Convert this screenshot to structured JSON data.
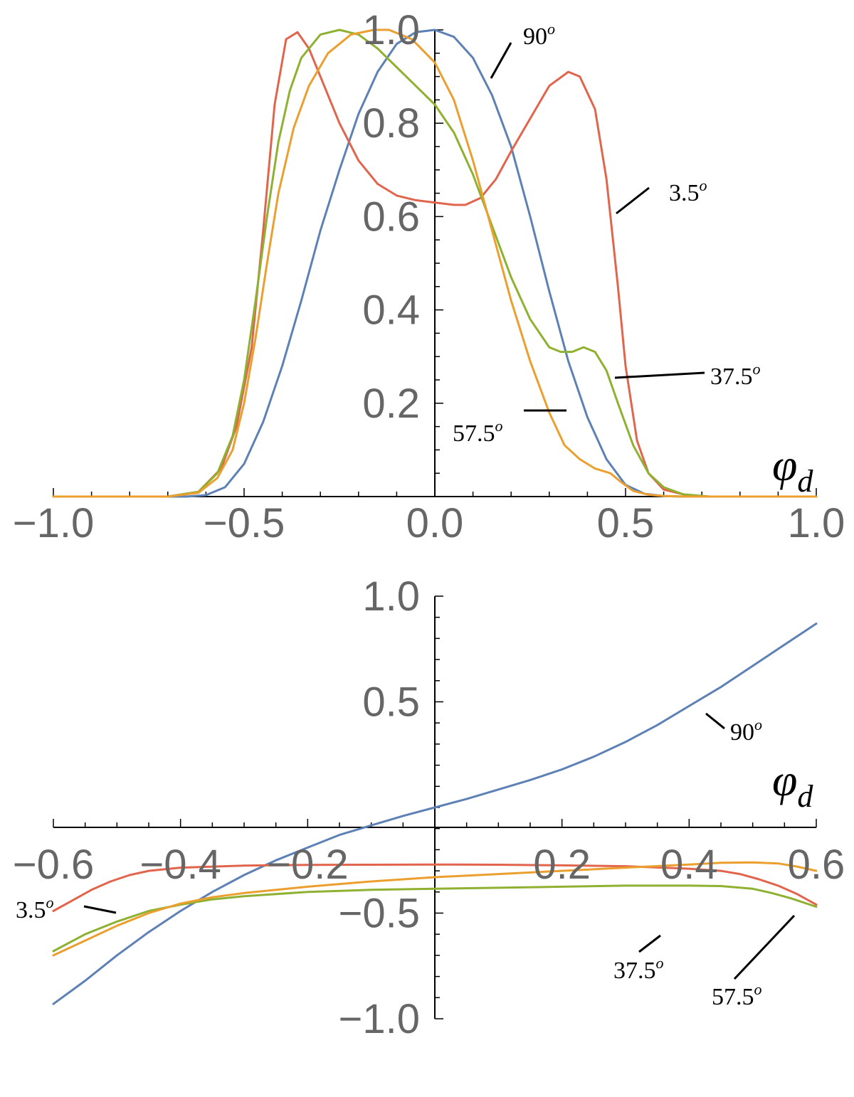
{
  "chart_data": [
    {
      "type": "line",
      "title": "",
      "xlabel": "φ_d",
      "xlabel_main": "φ",
      "xlabel_sub": "d",
      "ylabel": "",
      "xlim": [
        -1.0,
        1.0
      ],
      "ylim": [
        0,
        1.0
      ],
      "x_ticks": [
        -1.0,
        -0.5,
        0.0,
        0.5,
        1.0
      ],
      "x_tick_labels": [
        "−1.0",
        "−0.5",
        "0.0",
        "0.5",
        "1.0"
      ],
      "y_ticks": [
        0.2,
        0.4,
        0.6,
        0.8,
        1.0
      ],
      "y_tick_labels": [
        "0.2",
        "0.4",
        "0.6",
        "0.8",
        "1.0"
      ],
      "grid": false,
      "series": [
        {
          "name": "90",
          "color": "#5E81B5",
          "x": [
            -1.0,
            -0.65,
            -0.6,
            -0.55,
            -0.5,
            -0.45,
            -0.4,
            -0.35,
            -0.3,
            -0.25,
            -0.2,
            -0.15,
            -0.1,
            -0.05,
            0.0,
            0.05,
            0.1,
            0.15,
            0.2,
            0.25,
            0.3,
            0.35,
            0.4,
            0.45,
            0.5,
            0.55,
            0.6,
            0.65,
            1.0
          ],
          "y": [
            0,
            0,
            0.003,
            0.02,
            0.07,
            0.16,
            0.28,
            0.42,
            0.57,
            0.7,
            0.82,
            0.91,
            0.97,
            0.995,
            1.0,
            0.985,
            0.94,
            0.86,
            0.75,
            0.6,
            0.44,
            0.29,
            0.17,
            0.08,
            0.025,
            0.006,
            0.001,
            0,
            0
          ]
        },
        {
          "name": "3.5",
          "color": "#E1654C",
          "x": [
            -1.0,
            -0.7,
            -0.62,
            -0.56,
            -0.52,
            -0.48,
            -0.45,
            -0.42,
            -0.39,
            -0.36,
            -0.33,
            -0.3,
            -0.25,
            -0.2,
            -0.15,
            -0.1,
            -0.05,
            0.0,
            0.05,
            0.08,
            0.12,
            0.16,
            0.2,
            0.25,
            0.3,
            0.35,
            0.38,
            0.42,
            0.45,
            0.48,
            0.5,
            0.53,
            0.56,
            0.6,
            0.66,
            0.72,
            1.0
          ],
          "y": [
            0,
            0,
            0.01,
            0.06,
            0.15,
            0.32,
            0.57,
            0.84,
            0.98,
            0.995,
            0.96,
            0.9,
            0.8,
            0.72,
            0.67,
            0.645,
            0.635,
            0.63,
            0.625,
            0.625,
            0.64,
            0.68,
            0.74,
            0.81,
            0.88,
            0.91,
            0.9,
            0.83,
            0.68,
            0.45,
            0.28,
            0.12,
            0.05,
            0.015,
            0.003,
            0,
            0
          ]
        },
        {
          "name": "37.5",
          "color": "#8FB131",
          "x": [
            -1.0,
            -0.7,
            -0.62,
            -0.57,
            -0.53,
            -0.5,
            -0.47,
            -0.44,
            -0.41,
            -0.38,
            -0.35,
            -0.3,
            -0.25,
            -0.2,
            -0.15,
            -0.1,
            -0.05,
            0.0,
            0.05,
            0.1,
            0.15,
            0.2,
            0.25,
            0.3,
            0.33,
            0.36,
            0.39,
            0.42,
            0.45,
            0.48,
            0.52,
            0.56,
            0.6,
            0.65,
            0.72,
            1.0
          ],
          "y": [
            0,
            0,
            0.01,
            0.05,
            0.13,
            0.25,
            0.42,
            0.6,
            0.76,
            0.87,
            0.94,
            0.99,
            1.0,
            0.99,
            0.96,
            0.92,
            0.88,
            0.84,
            0.78,
            0.69,
            0.58,
            0.47,
            0.38,
            0.32,
            0.31,
            0.31,
            0.32,
            0.31,
            0.27,
            0.2,
            0.11,
            0.05,
            0.02,
            0.005,
            0,
            0
          ]
        },
        {
          "name": "57.5",
          "color": "#EB9F2F",
          "x": [
            -1.0,
            -0.7,
            -0.62,
            -0.57,
            -0.53,
            -0.5,
            -0.47,
            -0.44,
            -0.41,
            -0.37,
            -0.33,
            -0.28,
            -0.22,
            -0.16,
            -0.12,
            -0.06,
            0.0,
            0.05,
            0.1,
            0.15,
            0.2,
            0.25,
            0.3,
            0.34,
            0.38,
            0.42,
            0.46,
            0.49,
            0.52,
            0.56,
            0.6,
            0.66,
            1.0
          ],
          "y": [
            0,
            0,
            0.008,
            0.04,
            0.1,
            0.2,
            0.34,
            0.5,
            0.65,
            0.79,
            0.88,
            0.95,
            0.99,
            1.0,
            1.0,
            0.98,
            0.93,
            0.85,
            0.72,
            0.57,
            0.42,
            0.29,
            0.18,
            0.11,
            0.08,
            0.06,
            0.05,
            0.03,
            0.012,
            0.004,
            0.001,
            0,
            0
          ]
        }
      ],
      "annotations": [
        {
          "text": "90",
          "sup": "o",
          "series": "90"
        },
        {
          "text": "3.5",
          "sup": "o",
          "series": "3.5"
        },
        {
          "text": "37.5",
          "sup": "o",
          "series": "37.5"
        },
        {
          "text": "57.5",
          "sup": "o",
          "series": "57.5"
        }
      ]
    },
    {
      "type": "line",
      "title": "",
      "xlabel": "φ_d",
      "xlabel_main": "φ",
      "xlabel_sub": "d",
      "ylabel": "",
      "xlim": [
        -0.6,
        0.6
      ],
      "ylim": [
        -1.0,
        1.0
      ],
      "x_ticks": [
        -0.6,
        -0.4,
        -0.2,
        0.2,
        0.4,
        0.6
      ],
      "x_tick_labels": [
        "−0.6",
        "−0.4",
        "−0.2",
        "0.2",
        "0.4",
        "0.6"
      ],
      "y_ticks": [
        -1.0,
        -0.5,
        0.5,
        1.0
      ],
      "y_tick_labels": [
        "−1.0",
        "−0.5",
        "0.5",
        "1.0"
      ],
      "grid": false,
      "series": [
        {
          "name": "90",
          "color": "#5E81B5",
          "x": [
            -0.6,
            -0.55,
            -0.5,
            -0.45,
            -0.4,
            -0.35,
            -0.3,
            -0.25,
            -0.2,
            -0.15,
            -0.1,
            -0.05,
            0.0,
            0.05,
            0.1,
            0.15,
            0.2,
            0.25,
            0.3,
            0.35,
            0.4,
            0.45,
            0.5,
            0.55,
            0.6
          ],
          "y": [
            -0.93,
            -0.82,
            -0.7,
            -0.59,
            -0.49,
            -0.4,
            -0.32,
            -0.25,
            -0.19,
            -0.13,
            -0.085,
            -0.04,
            0.0,
            0.04,
            0.085,
            0.13,
            0.18,
            0.24,
            0.31,
            0.39,
            0.48,
            0.57,
            0.67,
            0.77,
            0.87
          ]
        },
        {
          "name": "3.5",
          "color": "#E1654C",
          "x": [
            -0.6,
            -0.57,
            -0.54,
            -0.51,
            -0.48,
            -0.45,
            -0.4,
            -0.3,
            -0.2,
            -0.1,
            0.0,
            0.1,
            0.2,
            0.3,
            0.4,
            0.45,
            0.48,
            0.51,
            0.54,
            0.57,
            0.6
          ],
          "y": [
            -0.49,
            -0.44,
            -0.39,
            -0.35,
            -0.32,
            -0.3,
            -0.285,
            -0.275,
            -0.272,
            -0.271,
            -0.27,
            -0.271,
            -0.274,
            -0.278,
            -0.29,
            -0.3,
            -0.315,
            -0.34,
            -0.37,
            -0.41,
            -0.46
          ]
        },
        {
          "name": "37.5",
          "color": "#8FB131",
          "x": [
            -0.6,
            -0.55,
            -0.5,
            -0.45,
            -0.4,
            -0.35,
            -0.3,
            -0.2,
            -0.1,
            0.0,
            0.1,
            0.2,
            0.3,
            0.4,
            0.45,
            0.5,
            0.53,
            0.56,
            0.6
          ],
          "y": [
            -0.68,
            -0.6,
            -0.54,
            -0.49,
            -0.46,
            -0.435,
            -0.42,
            -0.4,
            -0.39,
            -0.385,
            -0.38,
            -0.375,
            -0.37,
            -0.37,
            -0.372,
            -0.385,
            -0.405,
            -0.43,
            -0.47
          ]
        },
        {
          "name": "57.5",
          "color": "#EB9F2F",
          "x": [
            -0.6,
            -0.55,
            -0.5,
            -0.45,
            -0.4,
            -0.35,
            -0.3,
            -0.2,
            -0.1,
            0.0,
            0.1,
            0.2,
            0.3,
            0.4,
            0.45,
            0.5,
            0.54,
            0.57,
            0.6
          ],
          "y": [
            -0.7,
            -0.63,
            -0.56,
            -0.5,
            -0.455,
            -0.425,
            -0.405,
            -0.375,
            -0.35,
            -0.33,
            -0.315,
            -0.3,
            -0.285,
            -0.27,
            -0.262,
            -0.26,
            -0.265,
            -0.28,
            -0.3
          ]
        }
      ],
      "annotations": [
        {
          "text": "90",
          "sup": "o",
          "series": "90"
        },
        {
          "text": "3.5",
          "sup": "o",
          "series": "3.5"
        },
        {
          "text": "37.5",
          "sup": "o",
          "series": "37.5"
        },
        {
          "text": "57.5",
          "sup": "o",
          "series": "57.5"
        }
      ]
    }
  ]
}
